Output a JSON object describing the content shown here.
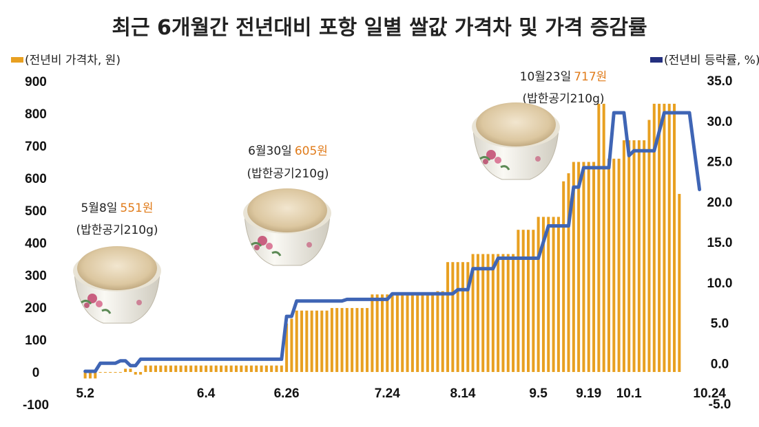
{
  "chart_data": {
    "type": "bar+line",
    "title": "최근 6개월간 전년대비 포항 일별 쌀값 가격차 및 가격 증감률",
    "legend": [
      {
        "label": "(전년비 가격차, 원)",
        "color": "#e8a021"
      },
      {
        "label": "(전년비 등락률, %)",
        "color": "#24307f"
      }
    ],
    "left_axis": {
      "ticks": [
        "900",
        "800",
        "700",
        "600",
        "500",
        "400",
        "300",
        "200",
        "100",
        "0",
        "-100"
      ],
      "ylim": [
        -100,
        900
      ]
    },
    "right_axis": {
      "ticks": [
        "35.0",
        "30.0",
        "25.0",
        "20.0",
        "15.0",
        "10.0",
        "5.0",
        "0.0",
        "-5.0"
      ],
      "ylim": [
        -5,
        35
      ]
    },
    "x_ticks": [
      {
        "label": "5.2",
        "index": 0
      },
      {
        "label": "6.4",
        "index": 24
      },
      {
        "label": "6.26",
        "index": 40
      },
      {
        "label": "7.24",
        "index": 60
      },
      {
        "label": "8.14",
        "index": 75
      },
      {
        "label": "9.5",
        "index": 90
      },
      {
        "label": "9.19",
        "index": 100
      },
      {
        "label": "10.1",
        "index": 108
      },
      {
        "label": "10.24",
        "index": 124
      }
    ],
    "bars": [
      {
        "n": 3,
        "v": -20
      },
      {
        "n": 5,
        "v": 0
      },
      {
        "n": 2,
        "v": 10
      },
      {
        "n": 2,
        "v": -8
      },
      {
        "n": 28,
        "v": 20
      },
      {
        "n": 1,
        "v": 150
      },
      {
        "n": 1,
        "v": 165
      },
      {
        "n": 7,
        "v": 190
      },
      {
        "n": 8,
        "v": 198
      },
      {
        "n": 13,
        "v": 240
      },
      {
        "n": 2,
        "v": 250
      },
      {
        "n": 5,
        "v": 340
      },
      {
        "n": 9,
        "v": 365
      },
      {
        "n": 4,
        "v": 440
      },
      {
        "n": 5,
        "v": 480
      },
      {
        "n": 1,
        "v": 590
      },
      {
        "n": 1,
        "v": 615
      },
      {
        "n": 5,
        "v": 650
      },
      {
        "n": 2,
        "v": 830
      },
      {
        "n": 3,
        "v": 660
      },
      {
        "n": 5,
        "v": 717
      },
      {
        "n": 1,
        "v": 780
      },
      {
        "n": 5,
        "v": 830
      },
      {
        "n": 1,
        "v": 551
      }
    ],
    "rate_line": [
      [
        0,
        -1.0
      ],
      [
        2,
        -1.0
      ],
      [
        3,
        0.0
      ],
      [
        6,
        0.0
      ],
      [
        7,
        0.3
      ],
      [
        8,
        0.3
      ],
      [
        9,
        -0.3
      ],
      [
        10,
        -0.3
      ],
      [
        11,
        0.5
      ],
      [
        39,
        0.5
      ],
      [
        40,
        5.8
      ],
      [
        41,
        5.8
      ],
      [
        42,
        7.7
      ],
      [
        51,
        7.7
      ],
      [
        52,
        7.9
      ],
      [
        60,
        7.9
      ],
      [
        61,
        8.6
      ],
      [
        73,
        8.6
      ],
      [
        74,
        9.1
      ],
      [
        76,
        9.1
      ],
      [
        77,
        11.7
      ],
      [
        81,
        11.7
      ],
      [
        82,
        13.0
      ],
      [
        90,
        13.0
      ],
      [
        92,
        17.0
      ],
      [
        96,
        17.0
      ],
      [
        97,
        21.8
      ],
      [
        98,
        21.8
      ],
      [
        99,
        24.2
      ],
      [
        104,
        24.2
      ],
      [
        105,
        31.0
      ],
      [
        107,
        31.0
      ],
      [
        108,
        25.7
      ],
      [
        109,
        26.3
      ],
      [
        113,
        26.3
      ],
      [
        115,
        31.0
      ],
      [
        120,
        31.0
      ],
      [
        122,
        21.5
      ]
    ],
    "annotations": [
      {
        "date": "5월8일",
        "value": "551원",
        "note": "(밥한공기210g)"
      },
      {
        "date": "6월30일",
        "value": "605원",
        "note": "(밥한공기210g)"
      },
      {
        "date": "10월23일",
        "value": "717원",
        "note": "(밥한공기210g)"
      }
    ],
    "colors": {
      "bar": "#e8a021",
      "line": "#3f65b5",
      "legend_line": "#24307f"
    }
  }
}
